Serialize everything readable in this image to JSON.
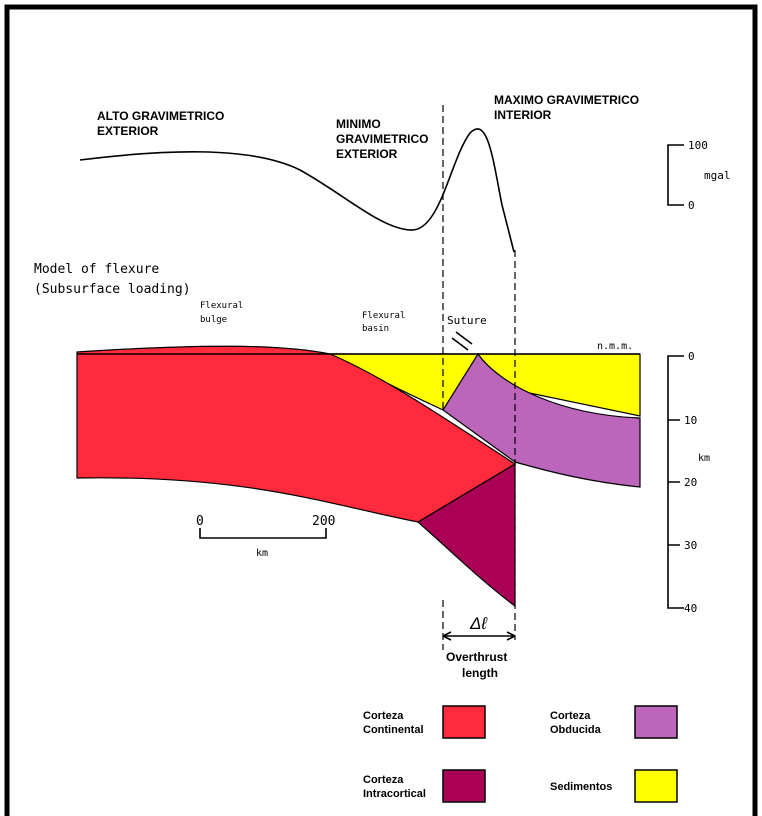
{
  "gravity": {
    "alto": [
      "ALTO GRAVIMETRICO",
      "EXTERIOR"
    ],
    "minimo": [
      "MINIMO",
      "GRAVIMETRICO",
      "EXTERIOR"
    ],
    "maximo": [
      "MAXIMO GRAVIMETRICO",
      "INTERIOR"
    ],
    "scale": {
      "top": "100",
      "unit": "mgal",
      "bottom": "0"
    }
  },
  "model": {
    "title": [
      "Model of flexure",
      "(Subsurface loading)"
    ],
    "bulge": [
      "Flexural",
      "bulge"
    ],
    "basin": [
      "Flexural",
      "basin"
    ],
    "suture": "Suture",
    "sea_level": "n.m.m."
  },
  "depth_scale": {
    "ticks": [
      "0",
      "10",
      "20",
      "30",
      "40"
    ],
    "unit": "km"
  },
  "distance_scale": {
    "start": "0",
    "end": "200",
    "unit": "km"
  },
  "overthrust": {
    "symbol": "Δℓ",
    "label": [
      "Overthrust",
      "length"
    ]
  },
  "legend": [
    {
      "label": [
        "Corteza",
        "Continental"
      ],
      "color": "#ff2a3c"
    },
    {
      "label": [
        "Corteza",
        "Obducida"
      ],
      "color": "#bb66bb"
    },
    {
      "label": [
        "Corteza",
        "Intracortical"
      ],
      "color": "#aa0055"
    },
    {
      "label": [
        "Sedimentos"
      ],
      "color": "#ffff00"
    }
  ]
}
